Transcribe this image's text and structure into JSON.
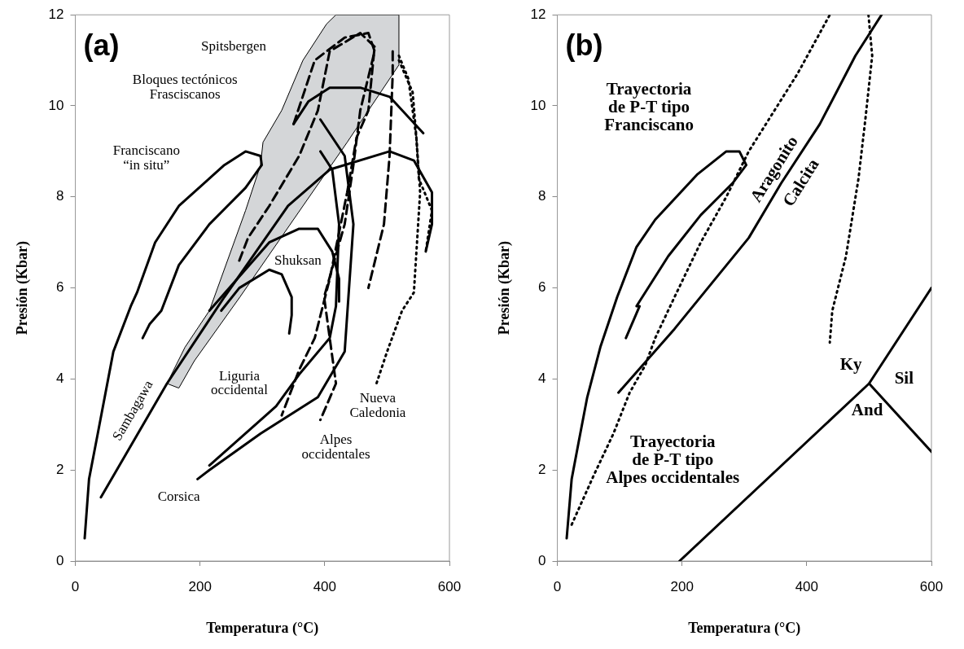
{
  "chart_data": [
    {
      "type": "line",
      "title": "(a)",
      "xlabel": "Temperatura (°C)",
      "ylabel": "Presión (Kbar)",
      "xlim": [
        0,
        600
      ],
      "ylim": [
        0,
        12
      ],
      "xticks": [
        0,
        200,
        400,
        600
      ],
      "yticks": [
        0,
        2,
        4,
        6,
        8,
        10,
        12
      ],
      "marker": "none",
      "legend": false,
      "grid": false,
      "series": [
        {
          "type": "line",
          "line_style": "solid",
          "color": "#000000",
          "x": [
            15,
            22,
            36,
            61,
            89,
            99,
            128,
            166,
            239,
            273,
            297,
            299,
            273,
            215,
            166,
            138,
            119,
            108
          ],
          "values": [
            0.5,
            1.8,
            2.8,
            4.6,
            5.6,
            5.9,
            7.0,
            7.8,
            8.7,
            9.0,
            8.9,
            8.7,
            8.2,
            7.4,
            6.5,
            5.5,
            5.2,
            4.9
          ]
        },
        {
          "type": "line",
          "line_style": "solid",
          "color": "#000000",
          "x": [
            41,
            147,
            239,
            341,
            408,
            504,
            543,
            572,
            572,
            562
          ],
          "values": [
            1.4,
            3.9,
            5.8,
            7.8,
            8.6,
            9.0,
            8.8,
            8.1,
            7.4,
            6.8
          ]
        },
        {
          "type": "line",
          "line_style": "solid",
          "color": "#000000",
          "x": [
            215,
            311,
            359,
            389,
            412,
            423,
            423
          ],
          "values": [
            5.5,
            7.0,
            7.3,
            7.3,
            6.8,
            6.2,
            5.7
          ]
        },
        {
          "type": "line",
          "line_style": "solid",
          "color": "#000000",
          "x": [
            234,
            263,
            311,
            331,
            347,
            347,
            343
          ],
          "values": [
            5.5,
            6.0,
            6.4,
            6.3,
            5.8,
            5.4,
            5.0
          ]
        },
        {
          "type": "line",
          "line_style": "solid",
          "color": "#000000",
          "x": [
            558,
            504,
            457,
            408,
            374,
            350
          ],
          "values": [
            9.4,
            10.2,
            10.4,
            10.4,
            10.1,
            9.6
          ]
        },
        {
          "type": "line",
          "line_style": "solid",
          "color": "#000000",
          "x": [
            393,
            432,
            446,
            432,
            389,
            297,
            215,
            196
          ],
          "values": [
            9.7,
            8.9,
            7.4,
            4.6,
            3.6,
            2.8,
            2.0,
            1.8
          ]
        },
        {
          "type": "line",
          "line_style": "solid",
          "color": "#000000",
          "x": [
            393,
            412,
            423,
            418,
            408,
            359,
            322,
            215
          ],
          "values": [
            9.0,
            8.6,
            7.4,
            5.6,
            4.9,
            4.1,
            3.4,
            2.1
          ]
        },
        {
          "type": "line",
          "line_style": "dashed",
          "color": "#000000",
          "x": [
            263,
            277,
            311,
            359,
            389,
            408,
            457,
            480,
            470,
            451,
            436,
            408,
            384,
            359,
            331
          ],
          "values": [
            6.6,
            7.1,
            7.8,
            8.9,
            9.9,
            11.2,
            11.6,
            11.3,
            9.9,
            9.3,
            8.1,
            6.2,
            4.9,
            4.2,
            3.2
          ]
        },
        {
          "type": "line",
          "line_style": "dashed",
          "color": "#000000",
          "x": [
            350,
            384,
            432,
            470,
            480,
            457,
            446,
            432,
            399,
            418,
            393
          ],
          "values": [
            9.6,
            11.0,
            11.5,
            11.6,
            11.2,
            9.9,
            8.7,
            7.4,
            5.8,
            3.9,
            3.1
          ]
        },
        {
          "type": "line",
          "line_style": "dashed",
          "color": "#000000",
          "x": [
            509,
            509,
            504,
            495,
            470
          ],
          "values": [
            11.2,
            10.7,
            8.9,
            7.4,
            6.0
          ]
        },
        {
          "type": "line",
          "line_style": "dotted",
          "color": "#000000",
          "x": [
            519,
            534,
            547,
            553,
            543,
            524,
            500,
            483
          ],
          "values": [
            11.1,
            10.6,
            9.3,
            8.1,
            5.9,
            5.5,
            4.6,
            3.9
          ]
        },
        {
          "type": "line",
          "line_style": "dotted",
          "color": "#000000",
          "x": [
            519,
            541,
            547,
            551,
            572,
            562
          ],
          "values": [
            11.0,
            10.3,
            9.3,
            8.4,
            7.7,
            6.8
          ]
        },
        {
          "type": "area",
          "color": "#d4d6d8",
          "x": [
            418,
            403,
            365,
            331,
            301,
            297,
            273,
            215,
            176,
            147,
            166,
            191,
            264,
            365,
            436,
            519,
            519,
            418
          ],
          "values": [
            12.0,
            11.8,
            11.0,
            9.9,
            9.2,
            8.7,
            7.7,
            5.5,
            4.7,
            3.9,
            3.8,
            4.4,
            5.8,
            7.8,
            9.2,
            10.9,
            12.0,
            12.0
          ]
        }
      ],
      "annotations": [
        "Spitsbergen",
        "Bloques tectónicos\nFrasciscanos",
        "Franciscano\n“in situ”",
        "Shuksan",
        "Sambagawa",
        "Liguria\noccidental",
        "Nueva\nCaledonia",
        "Alpes\noccidentales",
        "Corsica"
      ]
    },
    {
      "type": "line",
      "title": "(b)",
      "xlabel": "Temperatura (°C)",
      "ylabel": "Presión (Kbar)",
      "xlim": [
        0,
        600
      ],
      "ylim": [
        0,
        12
      ],
      "xticks": [
        0,
        200,
        400,
        600
      ],
      "yticks": [
        0,
        2,
        4,
        6,
        8,
        10,
        12
      ],
      "marker": "none",
      "legend": false,
      "grid": false,
      "series": [
        {
          "type": "line",
          "line_style": "solid",
          "color": "#000000",
          "x": [
            15,
            23,
            34,
            48,
            69,
            96,
            127,
            157,
            225,
            271,
            292,
            303,
            281,
            230,
            178,
            127,
            132,
            110
          ],
          "values": [
            0.5,
            1.8,
            2.6,
            3.6,
            4.7,
            5.8,
            6.9,
            7.5,
            8.5,
            9.0,
            9.0,
            8.7,
            8.3,
            7.6,
            6.7,
            5.6,
            5.6,
            4.9
          ]
        },
        {
          "type": "line",
          "line_style": "dotted",
          "color": "#000000",
          "x": [
            23,
            59,
            90,
            116,
            141,
            157,
            188,
            230,
            271,
            307,
            385,
            437
          ],
          "values": [
            0.8,
            1.9,
            2.8,
            3.7,
            4.3,
            4.9,
            5.8,
            7.0,
            8.0,
            9.0,
            10.7,
            12.0
          ]
        },
        {
          "type": "line",
          "line_style": "dotted",
          "color": "#000000",
          "x": [
            499,
            505,
            494,
            483,
            463,
            441,
            437
          ],
          "values": [
            12.0,
            11.1,
            9.7,
            8.4,
            6.7,
            5.5,
            4.8
          ]
        },
        {
          "type": "line",
          "line_style": "solid",
          "color": "#000000",
          "x": [
            98,
            188,
            307,
            359,
            421,
            478,
            520
          ],
          "values": [
            3.7,
            5.1,
            7.1,
            8.3,
            9.6,
            11.1,
            12.0
          ]
        },
        {
          "type": "line",
          "line_style": "solid",
          "color": "#000000",
          "x": [
            196,
            500,
            600
          ],
          "values": [
            0,
            3.9,
            6.0
          ]
        },
        {
          "type": "line",
          "line_style": "solid",
          "color": "#000000",
          "x": [
            500,
            600
          ],
          "values": [
            3.9,
            2.4
          ]
        }
      ],
      "annotations": [
        "Trayectoria\nde P-T tipo\nFranciscano",
        "Aragonito",
        "Calcita",
        "Trayectoria\nde P-T tipo\nAlpes occidentales",
        "Ky",
        "Sil",
        "And"
      ]
    }
  ]
}
